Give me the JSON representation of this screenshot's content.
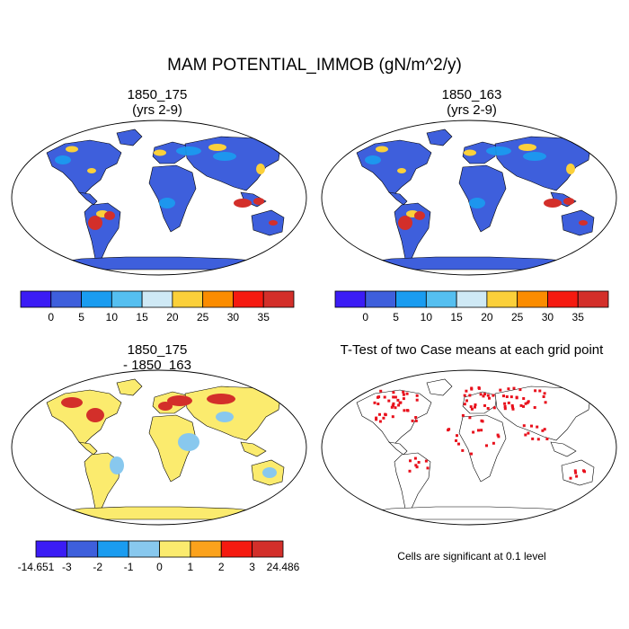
{
  "title": "MAM POTENTIAL_IMMOB (gN/m^2/y)",
  "panels": {
    "case1": {
      "title_line1": "1850_175",
      "title_line2": "(yrs 2-9)"
    },
    "case2": {
      "title_line1": "1850_163",
      "title_line2": "(yrs 2-9)"
    },
    "diff": {
      "title_line1": "1850_175",
      "title_line2": "- 1850_163"
    },
    "ttest": {
      "title": "T-Test of two Case means at each grid point",
      "note": "Cells are significant at 0.1 level"
    }
  },
  "colorbar_abs": {
    "colors": [
      "#3b1cf5",
      "#3e5fdc",
      "#1a9cf0",
      "#55bff0",
      "#cfe9f5",
      "#fbd03a",
      "#fb8c00",
      "#f51a10",
      "#d32f2a"
    ],
    "labels": [
      "0",
      "5",
      "10",
      "15",
      "20",
      "25",
      "30",
      "35"
    ]
  },
  "colorbar_diff": {
    "colors": [
      "#3b1cf5",
      "#3e5fdc",
      "#1a9cf0",
      "#88c8ee",
      "#fbeb6e",
      "#fba21c",
      "#f51a10",
      "#d32f2a"
    ],
    "labels": [
      "-14.651",
      "-3",
      "-2",
      "-1",
      "0",
      "1",
      "2",
      "3",
      "24.486"
    ]
  },
  "map_colors": {
    "ocean": "#ffffff",
    "land_low": "#3e5fdc",
    "land_mid": "#1a9cf0",
    "land_warm": "#fbd03a",
    "land_hot": "#d32f2a",
    "diff_base": "#fbeb6e",
    "diff_cool": "#88c8ee",
    "diff_hot": "#d32f2a",
    "sig": "#e8101c"
  }
}
